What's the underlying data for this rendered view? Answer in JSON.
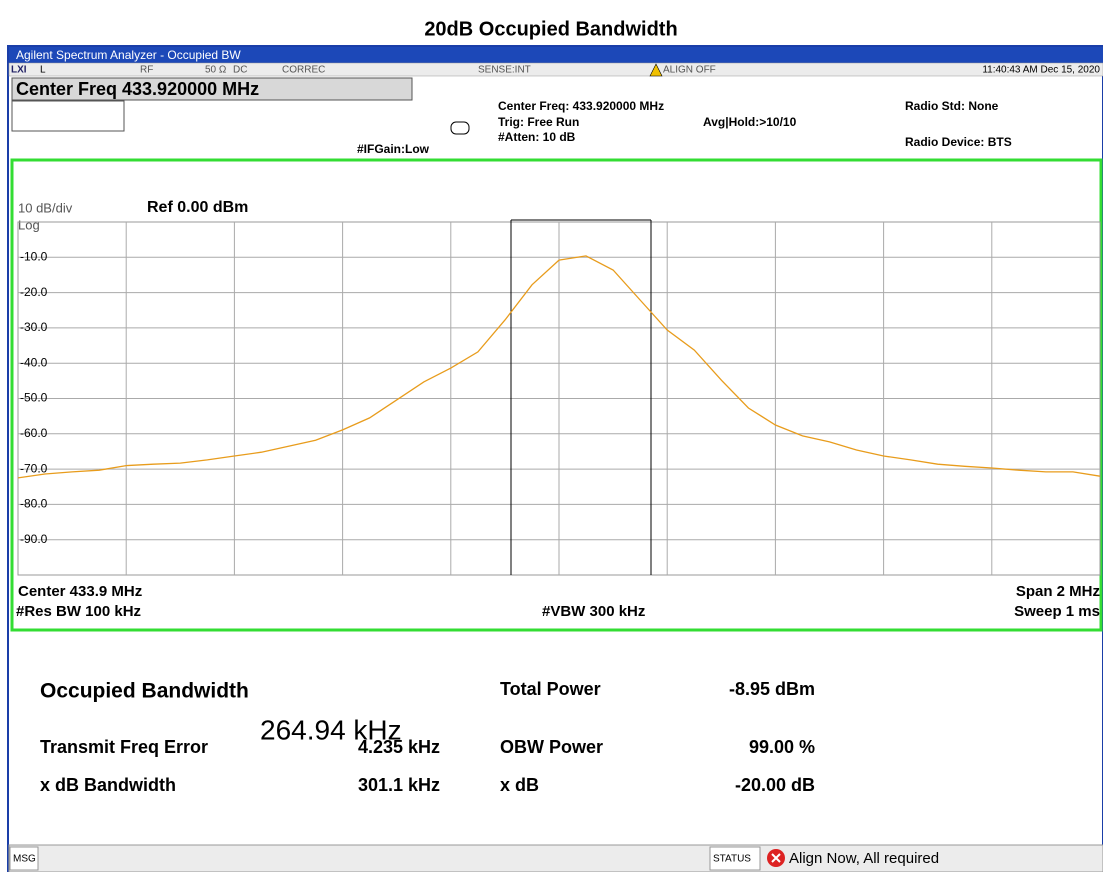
{
  "title": "20dB Occupied Bandwidth",
  "window_title": "Agilent Spectrum Analyzer - Occupied BW",
  "status_row": {
    "input": "L",
    "rf": "RF",
    "impedance": "50 Ω",
    "coupling": "DC",
    "correction": "CORREC",
    "sense": "SENSE:INT",
    "align": "ALIGN OFF",
    "datetime": "11:40:43 AM Dec 15, 2020"
  },
  "header": {
    "center_freq_box": "Center Freq 433.920000 MHz",
    "if_gain": "#IFGain:Low",
    "center_freq": "Center Freq: 433.920000 MHz",
    "trigger": "Trig: Free Run",
    "attenuation": "#Atten: 10 dB",
    "avg_hold": "Avg|Hold:>10/10",
    "radio_std": "Radio Std: None",
    "radio_device": "Radio Device: BTS"
  },
  "plot": {
    "scale": "10 dB/div",
    "scale_type": "Log",
    "ref_level": "Ref 0.00 dBm",
    "ylim": [
      -100,
      0
    ],
    "yticks": [
      {
        "value": -10,
        "label": "-10.0"
      },
      {
        "value": -20,
        "label": "-20.0"
      },
      {
        "value": -30,
        "label": "-30.0"
      },
      {
        "value": -40,
        "label": "-40.0"
      },
      {
        "value": -50,
        "label": "-50.0"
      },
      {
        "value": -60,
        "label": "-60.0"
      },
      {
        "value": -70,
        "label": "-70.0"
      },
      {
        "value": -80,
        "label": "-80.0"
      },
      {
        "value": -90,
        "label": "-90.0"
      }
    ],
    "trace_color": "#e89c1c",
    "trace": [
      -72.5,
      -71.4,
      -70.8,
      -70.3,
      -69.0,
      -68.6,
      -68.3,
      -67.4,
      -66.3,
      -65.2,
      -63.5,
      -61.8,
      -58.9,
      -55.5,
      -50.4,
      -45.3,
      -41.4,
      -36.8,
      -27.8,
      -17.8,
      -10.8,
      -9.6,
      -13.6,
      -22.1,
      -30.6,
      -36.3,
      -44.8,
      -52.7,
      -57.5,
      -60.6,
      -62.3,
      -64.6,
      -66.3,
      -67.4,
      -68.6,
      -69.2,
      -69.7,
      -70.3,
      -70.8,
      -70.8,
      -72.0
    ]
  },
  "footer": {
    "center": "Center 433.9 MHz",
    "span": "Span 2 MHz",
    "res_bw": "#Res BW 100 kHz",
    "vbw": "#VBW 300 kHz",
    "sweep": "Sweep 1 ms"
  },
  "results": {
    "obw_label": "Occupied Bandwidth",
    "obw_value": "264.94 kHz",
    "total_power_label": "Total Power",
    "total_power_value": "-8.95 dBm",
    "freq_error_label": "Transmit Freq Error",
    "freq_error_value": "4.235 kHz",
    "obw_power_label": "OBW Power",
    "obw_power_value": "99.00 %",
    "xdb_bw_label": "x dB Bandwidth",
    "xdb_bw_value": "301.1 kHz",
    "xdb_label": "x dB",
    "xdb_value": "-20.00 dB"
  },
  "message_bar": {
    "msg": "MSG",
    "status": "STATUS",
    "status_text": "Align Now, All required"
  }
}
